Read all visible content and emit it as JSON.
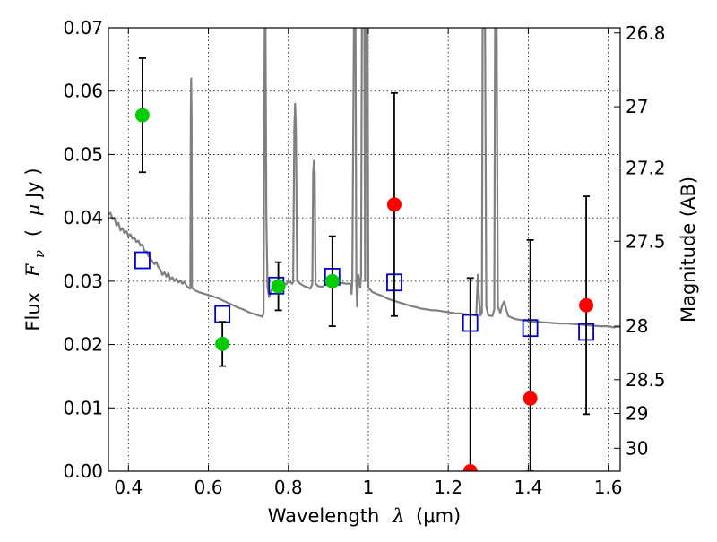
{
  "chart_data": {
    "type": "scatter",
    "title": "",
    "xlabel": "Wavelength",
    "xlabel_math": "λ",
    "xlabel_unit": "(μm)",
    "ylabel": "Flux",
    "ylabel_math": "F",
    "ylabel_math_sub": "ν",
    "ylabel_unit_open": "(",
    "ylabel_unit_math": "μ",
    "ylabel_unit_rest": "Jy )",
    "y2label": "Magnitude (AB)",
    "xlim": [
      0.35,
      1.63
    ],
    "ylim": [
      0.0,
      0.07
    ],
    "grid": true,
    "x_ticks": [
      {
        "value": 0.4,
        "label": "0.4"
      },
      {
        "value": 0.6,
        "label": "0.6"
      },
      {
        "value": 0.8,
        "label": "0.8"
      },
      {
        "value": 1.0,
        "label": "1"
      },
      {
        "value": 1.2,
        "label": "1.2"
      },
      {
        "value": 1.4,
        "label": "1.4"
      },
      {
        "value": 1.6,
        "label": "1.6"
      }
    ],
    "y_ticks": [
      {
        "value": 0.0,
        "label": "0.00"
      },
      {
        "value": 0.01,
        "label": "0.01"
      },
      {
        "value": 0.02,
        "label": "0.02"
      },
      {
        "value": 0.03,
        "label": "0.03"
      },
      {
        "value": 0.04,
        "label": "0.04"
      },
      {
        "value": 0.05,
        "label": "0.05"
      },
      {
        "value": 0.06,
        "label": "0.06"
      },
      {
        "value": 0.07,
        "label": "0.07"
      }
    ],
    "y2_ticks": [
      {
        "value": 26.8,
        "label": "26.8"
      },
      {
        "value": 27.0,
        "label": "27"
      },
      {
        "value": 27.2,
        "label": "27.2"
      },
      {
        "value": 27.5,
        "label": "27.5"
      },
      {
        "value": 28.0,
        "label": "28"
      },
      {
        "value": 28.5,
        "label": "28.5"
      },
      {
        "value": 29.0,
        "label": "29"
      },
      {
        "value": 30.0,
        "label": "30"
      }
    ],
    "series": [
      {
        "style": "line",
        "color": "#808080",
        "points": [
          [
            0.35,
            0.0405
          ],
          [
            0.355,
            0.0408
          ],
          [
            0.36,
            0.0398
          ],
          [
            0.365,
            0.04
          ],
          [
            0.37,
            0.0388
          ],
          [
            0.375,
            0.0392
          ],
          [
            0.38,
            0.038
          ],
          [
            0.385,
            0.0384
          ],
          [
            0.39,
            0.0376
          ],
          [
            0.395,
            0.0379
          ],
          [
            0.4,
            0.0371
          ],
          [
            0.405,
            0.0374
          ],
          [
            0.41,
            0.0367
          ],
          [
            0.415,
            0.0369
          ],
          [
            0.42,
            0.0362
          ],
          [
            0.425,
            0.0364
          ],
          [
            0.43,
            0.0356
          ],
          [
            0.435,
            0.0358
          ],
          [
            0.44,
            0.0348
          ],
          [
            0.445,
            0.0347
          ],
          [
            0.45,
            0.034
          ],
          [
            0.455,
            0.0336
          ],
          [
            0.46,
            0.0331
          ],
          [
            0.465,
            0.0327
          ],
          [
            0.47,
            0.033
          ],
          [
            0.475,
            0.0322
          ],
          [
            0.48,
            0.0318
          ],
          [
            0.485,
            0.031
          ],
          [
            0.49,
            0.0314
          ],
          [
            0.495,
            0.0307
          ],
          [
            0.5,
            0.0313
          ],
          [
            0.505,
            0.0303
          ],
          [
            0.51,
            0.0306
          ],
          [
            0.515,
            0.03
          ],
          [
            0.52,
            0.0304
          ],
          [
            0.525,
            0.0298
          ],
          [
            0.53,
            0.0301
          ],
          [
            0.535,
            0.0296
          ],
          [
            0.54,
            0.0299
          ],
          [
            0.545,
            0.0293
          ],
          [
            0.55,
            0.029
          ],
          [
            0.555,
            0.0288
          ],
          [
            0.556,
            0.056
          ],
          [
            0.557,
            0.062
          ],
          [
            0.558,
            0.056
          ],
          [
            0.559,
            0.029
          ],
          [
            0.565,
            0.0286
          ],
          [
            0.575,
            0.0283
          ],
          [
            0.585,
            0.0281
          ],
          [
            0.595,
            0.0279
          ],
          [
            0.605,
            0.0277
          ],
          [
            0.615,
            0.0275
          ],
          [
            0.625,
            0.0273
          ],
          [
            0.635,
            0.027
          ],
          [
            0.645,
            0.0267
          ],
          [
            0.655,
            0.0264
          ],
          [
            0.665,
            0.0261
          ],
          [
            0.675,
            0.0258
          ],
          [
            0.685,
            0.0256
          ],
          [
            0.695,
            0.0253
          ],
          [
            0.705,
            0.025
          ],
          [
            0.715,
            0.0248
          ],
          [
            0.725,
            0.0246
          ],
          [
            0.735,
            0.0244
          ],
          [
            0.738,
            0.025
          ],
          [
            0.74,
            0.06
          ],
          [
            0.741,
            0.07
          ],
          [
            0.743,
            0.07
          ],
          [
            0.745,
            0.04
          ],
          [
            0.748,
            0.029
          ],
          [
            0.752,
            0.0275
          ],
          [
            0.756,
            0.0282
          ],
          [
            0.76,
            0.029
          ],
          [
            0.765,
            0.0285
          ],
          [
            0.77,
            0.029
          ],
          [
            0.775,
            0.0295
          ],
          [
            0.78,
            0.0292
          ],
          [
            0.785,
            0.03
          ],
          [
            0.79,
            0.0297
          ],
          [
            0.795,
            0.0295
          ],
          [
            0.8,
            0.03
          ],
          [
            0.805,
            0.0298
          ],
          [
            0.81,
            0.0296
          ],
          [
            0.812,
            0.03
          ],
          [
            0.815,
            0.054
          ],
          [
            0.817,
            0.058
          ],
          [
            0.819,
            0.054
          ],
          [
            0.822,
            0.03
          ],
          [
            0.83,
            0.0296
          ],
          [
            0.84,
            0.0292
          ],
          [
            0.85,
            0.029
          ],
          [
            0.855,
            0.0288
          ],
          [
            0.86,
            0.0296
          ],
          [
            0.862,
            0.047
          ],
          [
            0.864,
            0.049
          ],
          [
            0.866,
            0.047
          ],
          [
            0.868,
            0.0296
          ],
          [
            0.875,
            0.0292
          ],
          [
            0.885,
            0.0291
          ],
          [
            0.895,
            0.0296
          ],
          [
            0.905,
            0.0295
          ],
          [
            0.915,
            0.0297
          ],
          [
            0.925,
            0.0298
          ],
          [
            0.935,
            0.0297
          ],
          [
            0.945,
            0.0296
          ],
          [
            0.955,
            0.0296
          ],
          [
            0.958,
            0.028
          ],
          [
            0.96,
            0.03
          ],
          [
            0.962,
            0.05
          ],
          [
            0.964,
            0.07
          ],
          [
            0.968,
            0.07
          ],
          [
            0.97,
            0.03
          ],
          [
            0.972,
            0.026
          ],
          [
            0.975,
            0.031
          ],
          [
            0.98,
            0.029
          ],
          [
            0.982,
            0.031
          ],
          [
            0.984,
            0.07
          ],
          [
            0.99,
            0.07
          ],
          [
            0.992,
            0.03
          ],
          [
            0.994,
            0.07
          ],
          [
            0.998,
            0.07
          ],
          [
            1.0,
            0.029
          ],
          [
            1.01,
            0.0283
          ],
          [
            1.02,
            0.028
          ],
          [
            1.03,
            0.0278
          ],
          [
            1.04,
            0.0275
          ],
          [
            1.05,
            0.0272
          ],
          [
            1.06,
            0.027
          ],
          [
            1.07,
            0.0268
          ],
          [
            1.08,
            0.0266
          ],
          [
            1.09,
            0.0264
          ],
          [
            1.1,
            0.0262
          ],
          [
            1.11,
            0.026
          ],
          [
            1.12,
            0.0259
          ],
          [
            1.13,
            0.0257
          ],
          [
            1.14,
            0.0256
          ],
          [
            1.15,
            0.0255
          ],
          [
            1.16,
            0.0254
          ],
          [
            1.17,
            0.0254
          ],
          [
            1.18,
            0.0253
          ],
          [
            1.19,
            0.0252
          ],
          [
            1.2,
            0.0251
          ],
          [
            1.21,
            0.025
          ],
          [
            1.22,
            0.0249
          ],
          [
            1.23,
            0.0249
          ],
          [
            1.24,
            0.0248
          ],
          [
            1.25,
            0.0247
          ],
          [
            1.26,
            0.0247
          ],
          [
            1.27,
            0.0246
          ],
          [
            1.272,
            0.028
          ],
          [
            1.274,
            0.031
          ],
          [
            1.276,
            0.028
          ],
          [
            1.28,
            0.0246
          ],
          [
            1.284,
            0.025
          ],
          [
            1.286,
            0.07
          ],
          [
            1.292,
            0.07
          ],
          [
            1.295,
            0.026
          ],
          [
            1.3,
            0.0246
          ],
          [
            1.31,
            0.0245
          ],
          [
            1.315,
            0.0255
          ],
          [
            1.317,
            0.07
          ],
          [
            1.321,
            0.07
          ],
          [
            1.324,
            0.026
          ],
          [
            1.33,
            0.025
          ],
          [
            1.335,
            0.0262
          ],
          [
            1.34,
            0.0268
          ],
          [
            1.345,
            0.0255
          ],
          [
            1.35,
            0.0245
          ],
          [
            1.36,
            0.0242
          ],
          [
            1.37,
            0.024
          ],
          [
            1.38,
            0.0239
          ],
          [
            1.39,
            0.0238
          ],
          [
            1.4,
            0.0237
          ],
          [
            1.42,
            0.0236
          ],
          [
            1.44,
            0.0235
          ],
          [
            1.46,
            0.0234
          ],
          [
            1.48,
            0.0233
          ],
          [
            1.5,
            0.0233
          ],
          [
            1.52,
            0.0232
          ],
          [
            1.54,
            0.0231
          ],
          [
            1.56,
            0.023
          ],
          [
            1.58,
            0.0229
          ],
          [
            1.6,
            0.0229
          ],
          [
            1.615,
            0.0227
          ],
          [
            1.62,
            0.0228
          ],
          [
            1.63,
            0.0228
          ]
        ]
      },
      {
        "style": "open-square",
        "color": "#0000cc",
        "points": [
          [
            0.435,
            0.0333
          ],
          [
            0.635,
            0.0248
          ],
          [
            0.77,
            0.0293
          ],
          [
            0.91,
            0.0307
          ],
          [
            1.065,
            0.0298
          ],
          [
            1.255,
            0.0234
          ],
          [
            1.405,
            0.0226
          ],
          [
            1.545,
            0.022
          ]
        ]
      },
      {
        "style": "filled-circle",
        "color": "#00cc00",
        "points": [
          {
            "x": 0.435,
            "y": 0.0562,
            "err": 0.009
          },
          {
            "x": 0.635,
            "y": 0.0201,
            "err": 0.0035
          },
          {
            "x": 0.775,
            "y": 0.0292,
            "err": 0.0038
          },
          {
            "x": 0.91,
            "y": 0.03,
            "err": 0.0071
          }
        ]
      },
      {
        "style": "filled-circle",
        "color": "#ff0000",
        "points": [
          {
            "x": 1.065,
            "y": 0.0421,
            "err": 0.0176
          },
          {
            "x": 1.255,
            "y": 0.0,
            "err": 0.0305
          },
          {
            "x": 1.405,
            "y": 0.0115,
            "err": 0.025
          },
          {
            "x": 1.545,
            "y": 0.0262,
            "err": 0.0172
          }
        ]
      }
    ]
  }
}
